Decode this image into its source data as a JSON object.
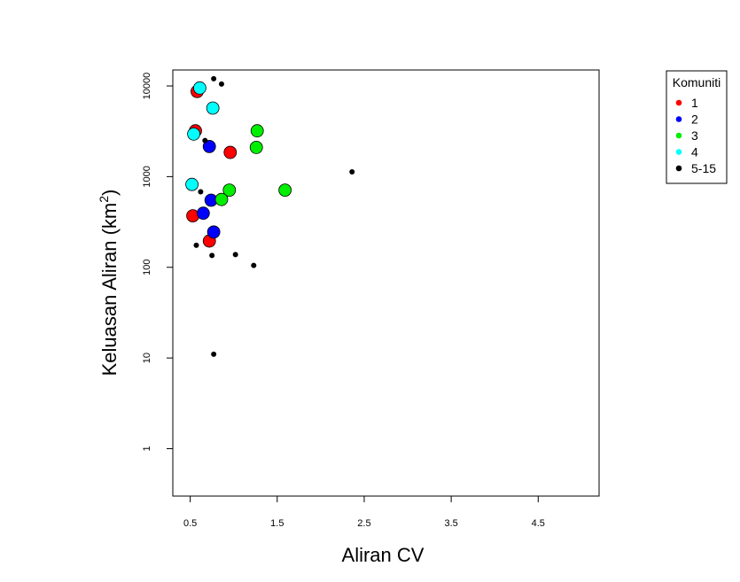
{
  "chart_data": {
    "type": "scatter",
    "title": "",
    "xlabel": "Aliran CV",
    "ylabel_main": "Keluasan Aliran (km",
    "ylabel_sup": "2",
    "ylabel_close": ")",
    "xlim": [
      0.3,
      5.2
    ],
    "ylim": [
      0.3,
      15000
    ],
    "y_scale": "log",
    "grid": false,
    "x_ticks": [
      0.5,
      1.5,
      2.5,
      3.5,
      4.5
    ],
    "x_tick_labels": [
      "0.5",
      "1.5",
      "2.5",
      "3.5",
      "4.5"
    ],
    "y_ticks": [
      1,
      10,
      100,
      1000,
      10000
    ],
    "y_tick_labels": [
      "1",
      "10",
      "100",
      "1000",
      "10000"
    ],
    "legend": {
      "title": "Komuniti",
      "placement": "outside-top-right",
      "entries": [
        {
          "label": "1",
          "color": "#ff0000"
        },
        {
          "label": "2",
          "color": "#0000ff"
        },
        {
          "label": "3",
          "color": "#00ee00"
        },
        {
          "label": "4",
          "color": "#00ffff"
        },
        {
          "label": "5-15",
          "color": "#000000"
        }
      ]
    },
    "series": [
      {
        "name": "1",
        "color": "#ff0000",
        "marker": "large",
        "points": [
          [
            0.58,
            8700
          ],
          [
            0.56,
            3200
          ],
          [
            0.96,
            1850
          ],
          [
            0.53,
            370
          ],
          [
            0.72,
            195
          ]
        ]
      },
      {
        "name": "2",
        "color": "#0000ff",
        "marker": "large",
        "points": [
          [
            0.72,
            2150
          ],
          [
            0.74,
            550
          ],
          [
            0.65,
            395
          ],
          [
            0.77,
            245
          ]
        ]
      },
      {
        "name": "3",
        "color": "#00ee00",
        "marker": "large",
        "points": [
          [
            1.27,
            3200
          ],
          [
            1.26,
            2100
          ],
          [
            0.95,
            710
          ],
          [
            1.59,
            710
          ],
          [
            0.86,
            560
          ]
        ]
      },
      {
        "name": "4",
        "color": "#00ffff",
        "marker": "large",
        "points": [
          [
            0.61,
            9500
          ],
          [
            0.76,
            5700
          ],
          [
            0.54,
            2950
          ],
          [
            0.52,
            820
          ]
        ]
      },
      {
        "name": "5-15",
        "color": "#000000",
        "marker": "small",
        "points": [
          [
            0.77,
            12000
          ],
          [
            0.86,
            10500
          ],
          [
            0.67,
            2500
          ],
          [
            2.36,
            1130
          ],
          [
            0.62,
            680
          ],
          [
            0.57,
            175
          ],
          [
            0.75,
            135
          ],
          [
            1.02,
            138
          ],
          [
            1.23,
            105
          ],
          [
            0.77,
            11
          ]
        ]
      }
    ]
  }
}
